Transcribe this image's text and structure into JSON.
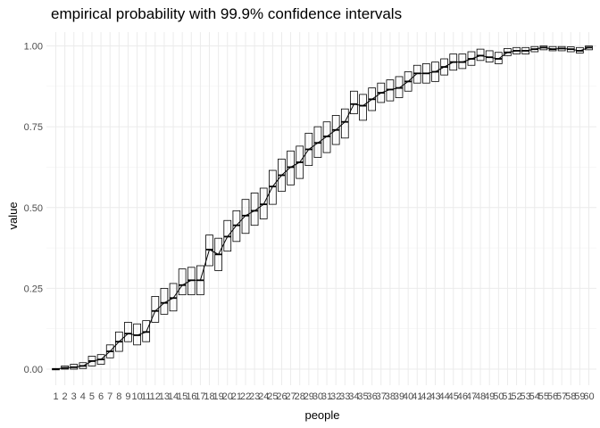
{
  "chart_data": {
    "type": "boxplot",
    "title": "empirical probability with 99.9% confidence intervals",
    "xlabel": "people",
    "ylabel": "value",
    "ylim": [
      0,
      1
    ],
    "y_ticks": [
      "0.00",
      "0.25",
      "0.50",
      "0.75",
      "1.00"
    ],
    "grid": true,
    "x": [
      1,
      2,
      3,
      4,
      5,
      6,
      7,
      8,
      9,
      10,
      11,
      12,
      13,
      14,
      15,
      16,
      17,
      18,
      19,
      20,
      21,
      22,
      23,
      24,
      25,
      26,
      27,
      28,
      29,
      30,
      31,
      32,
      33,
      34,
      35,
      36,
      37,
      38,
      39,
      40,
      41,
      42,
      43,
      44,
      45,
      46,
      47,
      48,
      49,
      50,
      51,
      52,
      53,
      54,
      55,
      56,
      57,
      58,
      59,
      60
    ],
    "median": [
      0.0,
      0.004,
      0.006,
      0.01,
      0.025,
      0.03,
      0.055,
      0.085,
      0.11,
      0.105,
      0.115,
      0.18,
      0.205,
      0.22,
      0.26,
      0.275,
      0.275,
      0.37,
      0.355,
      0.41,
      0.445,
      0.475,
      0.49,
      0.51,
      0.565,
      0.6,
      0.625,
      0.64,
      0.68,
      0.7,
      0.72,
      0.74,
      0.765,
      0.82,
      0.815,
      0.835,
      0.855,
      0.865,
      0.87,
      0.89,
      0.915,
      0.915,
      0.92,
      0.935,
      0.95,
      0.95,
      0.96,
      0.97,
      0.965,
      0.96,
      0.98,
      0.985,
      0.985,
      0.99,
      0.995,
      0.99,
      0.992,
      0.99,
      0.985,
      0.995
    ],
    "lower": [
      0.0,
      0.0,
      0.0,
      0.002,
      0.01,
      0.015,
      0.035,
      0.055,
      0.085,
      0.075,
      0.085,
      0.145,
      0.17,
      0.18,
      0.23,
      0.23,
      0.23,
      0.32,
      0.305,
      0.365,
      0.395,
      0.42,
      0.445,
      0.465,
      0.51,
      0.55,
      0.57,
      0.59,
      0.63,
      0.655,
      0.67,
      0.695,
      0.715,
      0.79,
      0.77,
      0.8,
      0.825,
      0.83,
      0.84,
      0.86,
      0.885,
      0.885,
      0.89,
      0.91,
      0.925,
      0.93,
      0.94,
      0.955,
      0.95,
      0.945,
      0.97,
      0.975,
      0.975,
      0.982,
      0.988,
      0.985,
      0.985,
      0.982,
      0.978,
      0.988
    ],
    "upper": [
      0.002,
      0.01,
      0.015,
      0.02,
      0.04,
      0.045,
      0.075,
      0.115,
      0.145,
      0.14,
      0.15,
      0.225,
      0.25,
      0.265,
      0.31,
      0.315,
      0.32,
      0.415,
      0.405,
      0.46,
      0.49,
      0.525,
      0.545,
      0.56,
      0.615,
      0.65,
      0.675,
      0.69,
      0.73,
      0.75,
      0.765,
      0.785,
      0.805,
      0.86,
      0.85,
      0.87,
      0.885,
      0.895,
      0.905,
      0.92,
      0.94,
      0.945,
      0.95,
      0.96,
      0.975,
      0.975,
      0.982,
      0.99,
      0.985,
      0.98,
      0.992,
      0.995,
      0.995,
      0.998,
      1.0,
      0.998,
      0.998,
      0.997,
      0.995,
      1.0
    ]
  }
}
